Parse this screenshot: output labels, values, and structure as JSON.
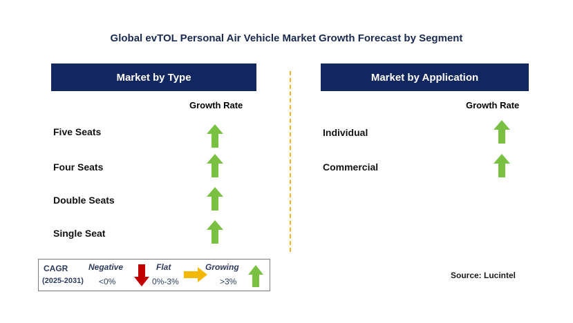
{
  "title": "Global evTOL Personal Air Vehicle Market Growth Forecast by Segment",
  "colors": {
    "header_bg": "#12265f",
    "arrow_up": "#7ac143",
    "arrow_down": "#c00000",
    "arrow_flat": "#f5b800",
    "divider": "#f2b51b"
  },
  "type_panel": {
    "header": "Market by Type",
    "column_label": "Growth Rate",
    "rows": [
      {
        "label": "Five Seats",
        "trend": "growing",
        "icon": "green-up-arrow-icon"
      },
      {
        "label": "Four Seats",
        "trend": "growing",
        "icon": "green-up-arrow-icon"
      },
      {
        "label": "Double Seats",
        "trend": "growing",
        "icon": "green-up-arrow-icon"
      },
      {
        "label": "Single Seat",
        "trend": "growing",
        "icon": "green-up-arrow-icon"
      }
    ]
  },
  "application_panel": {
    "header": "Market by Application",
    "column_label": "Growth Rate",
    "rows": [
      {
        "label": "Individual",
        "trend": "growing",
        "icon": "green-up-arrow-icon"
      },
      {
        "label": "Commercial",
        "trend": "growing",
        "icon": "green-up-arrow-icon"
      }
    ]
  },
  "legend": {
    "cagr_label": "CAGR",
    "period": "(2025-2031)",
    "negative_label": "Negative",
    "negative_range": "<0%",
    "flat_label": "Flat",
    "flat_range": "0%-3%",
    "growing_label": "Growing",
    "growing_range": ">3%"
  },
  "source": "Source: Lucintel"
}
